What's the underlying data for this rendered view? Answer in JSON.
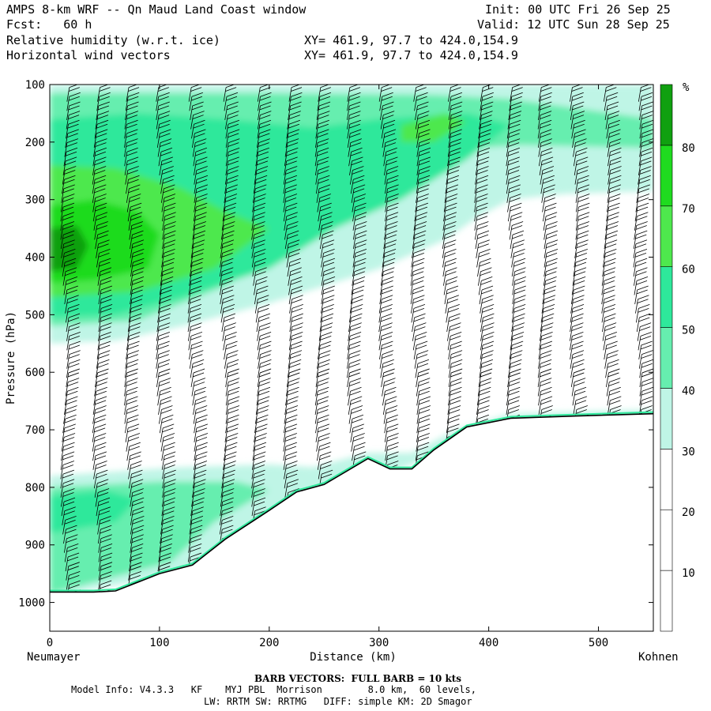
{
  "header": {
    "title": "AMPS 8-km WRF -- Qn Maud Land Coast window",
    "forecast": "Fcst:   60 h",
    "field1": "Relative humidity (w.r.t. ice)",
    "field2": "Horizontal wind vectors",
    "xy1": "XY= 461.9, 97.7 to 424.0,154.9",
    "xy2": "XY= 461.9, 97.7 to 424.0,154.9",
    "init": "Init: 00 UTC Fri 26 Sep 25",
    "valid": "Valid: 12 UTC Sun 28 Sep 25"
  },
  "footer": {
    "barb": "BARB VECTORS:  FULL BARB = 10 kts",
    "model1": "Model Info: V4.3.3   KF    MYJ PBL  Morrison        8.0 km,  60 levels,",
    "model2": "LW: RRTM SW: RRTMG   DIFF: simple KM: 2D Smagor"
  },
  "colors": {
    "c0": "#ffffff",
    "c30": "#bff5e6",
    "c40": "#66eeaf",
    "c50": "#2ee89b",
    "c60": "#4ee84d",
    "c70": "#1fdb1f",
    "c80": "#10a010",
    "terrain_line": "#000000",
    "terrain_fill": "#ffffff"
  },
  "chart_data": {
    "type": "heatmap",
    "xlabel": "Distance (km)",
    "ylabel": "Pressure (hPa)",
    "x_left_label": "Neumayer",
    "x_right_label": "Kohnen",
    "xlim": [
      0,
      550
    ],
    "ylim": [
      100,
      1050
    ],
    "y_scale": "linear, inverted",
    "x_ticks": [
      0,
      100,
      200,
      300,
      400,
      500
    ],
    "y_ticks": [
      100,
      200,
      300,
      400,
      500,
      600,
      700,
      800,
      900,
      1000
    ],
    "colorbar": {
      "unit": "%",
      "levels": [
        10,
        20,
        30,
        40,
        50,
        60,
        70,
        80
      ],
      "labels": [
        "10",
        "20",
        "30",
        "40",
        "50",
        "60",
        "70",
        "80"
      ],
      "colors": [
        "#ffffff",
        "#ffffff",
        "#ffffff",
        "#bff5e6",
        "#66eeaf",
        "#2ee89b",
        "#4ee84d",
        "#1fdb1f",
        "#10a010"
      ]
    },
    "terrain_surface_hPa": [
      [
        0,
        982
      ],
      [
        40,
        982
      ],
      [
        60,
        980
      ],
      [
        80,
        965
      ],
      [
        100,
        950
      ],
      [
        130,
        935
      ],
      [
        160,
        890
      ],
      [
        200,
        840
      ],
      [
        225,
        808
      ],
      [
        250,
        795
      ],
      [
        290,
        750
      ],
      [
        310,
        768
      ],
      [
        330,
        768
      ],
      [
        350,
        735
      ],
      [
        380,
        695
      ],
      [
        420,
        680
      ],
      [
        480,
        676
      ],
      [
        550,
        672
      ]
    ],
    "barbs": {
      "full_barb_kts": 10,
      "x_columns_km": [
        15,
        44,
        73,
        102,
        131,
        160,
        189,
        218,
        247,
        276,
        305,
        334,
        363,
        392,
        421,
        450,
        479,
        508,
        537
      ]
    }
  }
}
